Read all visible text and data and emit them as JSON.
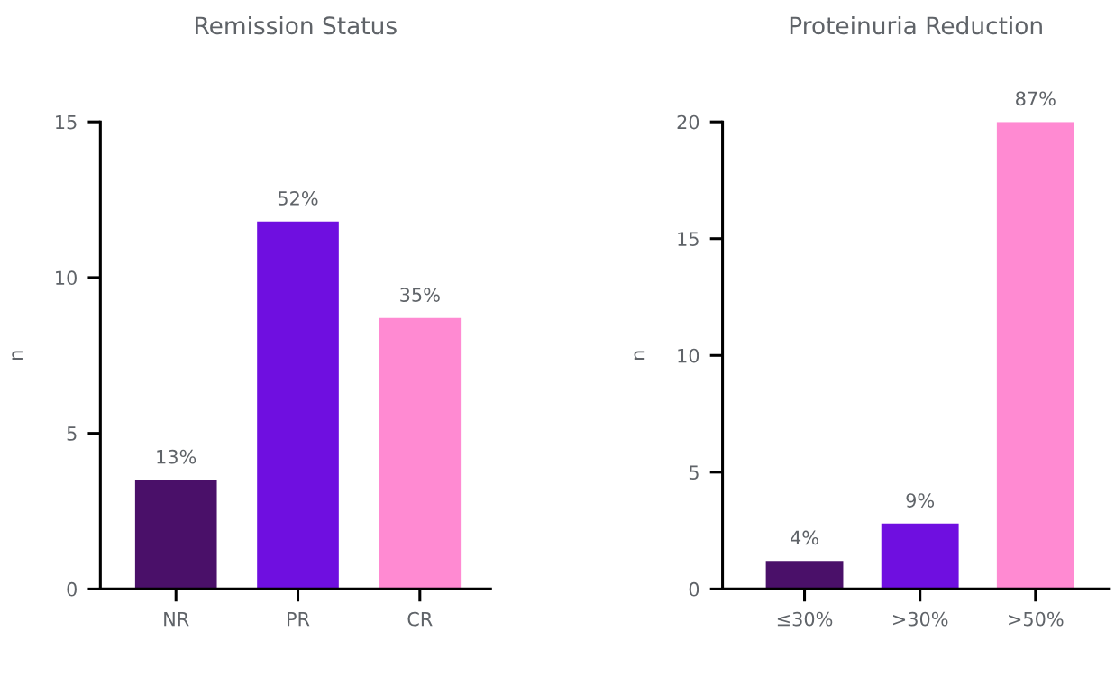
{
  "chart_data": [
    {
      "type": "bar",
      "title": "Remission Status",
      "ylabel": "n",
      "categories": [
        "NR",
        "PR",
        "CR"
      ],
      "values": [
        3.5,
        11.8,
        8.7
      ],
      "colors": [
        "#4a1069",
        "#6f0fe0",
        "#ff8ad2"
      ],
      "annotations": [
        {
          "text": "13%",
          "x": "NR",
          "y": 3.5
        },
        {
          "text": "52%",
          "x": "PR",
          "y": 11.8
        },
        {
          "text": "35%",
          "x": "CR",
          "y": 8.7
        }
      ],
      "ylim": [
        0,
        15
      ],
      "yticks": [
        0,
        5,
        10,
        15
      ],
      "grid": false
    },
    {
      "type": "bar",
      "title": "Proteinuria Reduction",
      "ylabel": "n",
      "categories": [
        "≤30%",
        ">30%",
        ">50%"
      ],
      "values": [
        1.2,
        2.8,
        20
      ],
      "colors": [
        "#4a1069",
        "#6f0fe0",
        "#ff8ad2"
      ],
      "annotations": [
        {
          "text": "4%",
          "x": "≤30%",
          "y": 1.2
        },
        {
          "text": "9%",
          "x": ">30%",
          "y": 2.8
        },
        {
          "text": "87%",
          "x": ">50%",
          "y": 20
        }
      ],
      "ylim": [
        0,
        20
      ],
      "yticks": [
        0,
        5,
        10,
        15,
        20
      ],
      "grid": false
    }
  ]
}
